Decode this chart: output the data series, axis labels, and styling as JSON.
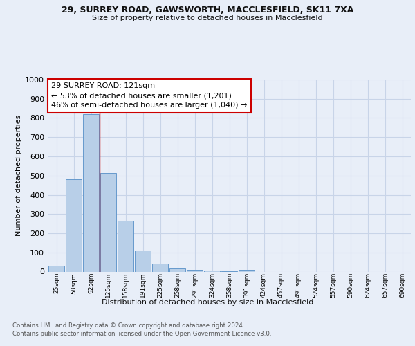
{
  "title_line1": "29, SURREY ROAD, GAWSWORTH, MACCLESFIELD, SK11 7XA",
  "title_line2": "Size of property relative to detached houses in Macclesfield",
  "xlabel": "Distribution of detached houses by size in Macclesfield",
  "ylabel": "Number of detached properties",
  "footer_line1": "Contains HM Land Registry data © Crown copyright and database right 2024.",
  "footer_line2": "Contains public sector information licensed under the Open Government Licence v3.0.",
  "bin_labels": [
    "25sqm",
    "58sqm",
    "92sqm",
    "125sqm",
    "158sqm",
    "191sqm",
    "225sqm",
    "258sqm",
    "291sqm",
    "324sqm",
    "358sqm",
    "391sqm",
    "424sqm",
    "457sqm",
    "491sqm",
    "524sqm",
    "557sqm",
    "590sqm",
    "624sqm",
    "657sqm",
    "690sqm"
  ],
  "bar_values": [
    30,
    480,
    820,
    515,
    265,
    110,
    40,
    18,
    10,
    5,
    2,
    10,
    0,
    0,
    0,
    0,
    0,
    0,
    0,
    0,
    0
  ],
  "bar_color": "#b8cfe8",
  "bar_edge_color": "#6699cc",
  "annotation_title": "29 SURREY ROAD: 121sqm",
  "annotation_line2": "← 53% of detached houses are smaller (1,201)",
  "annotation_line3": "46% of semi-detached houses are larger (1,040) →",
  "annotation_box_color": "#ffffff",
  "annotation_box_edge": "#cc0000",
  "ref_line_color": "#cc0000",
  "ref_line_x": 2.5,
  "ylim": [
    0,
    1000
  ],
  "yticks": [
    0,
    100,
    200,
    300,
    400,
    500,
    600,
    700,
    800,
    900,
    1000
  ],
  "grid_color": "#c8d4e8",
  "bg_color": "#e8eef8",
  "plot_bg_color": "#e8eef8"
}
